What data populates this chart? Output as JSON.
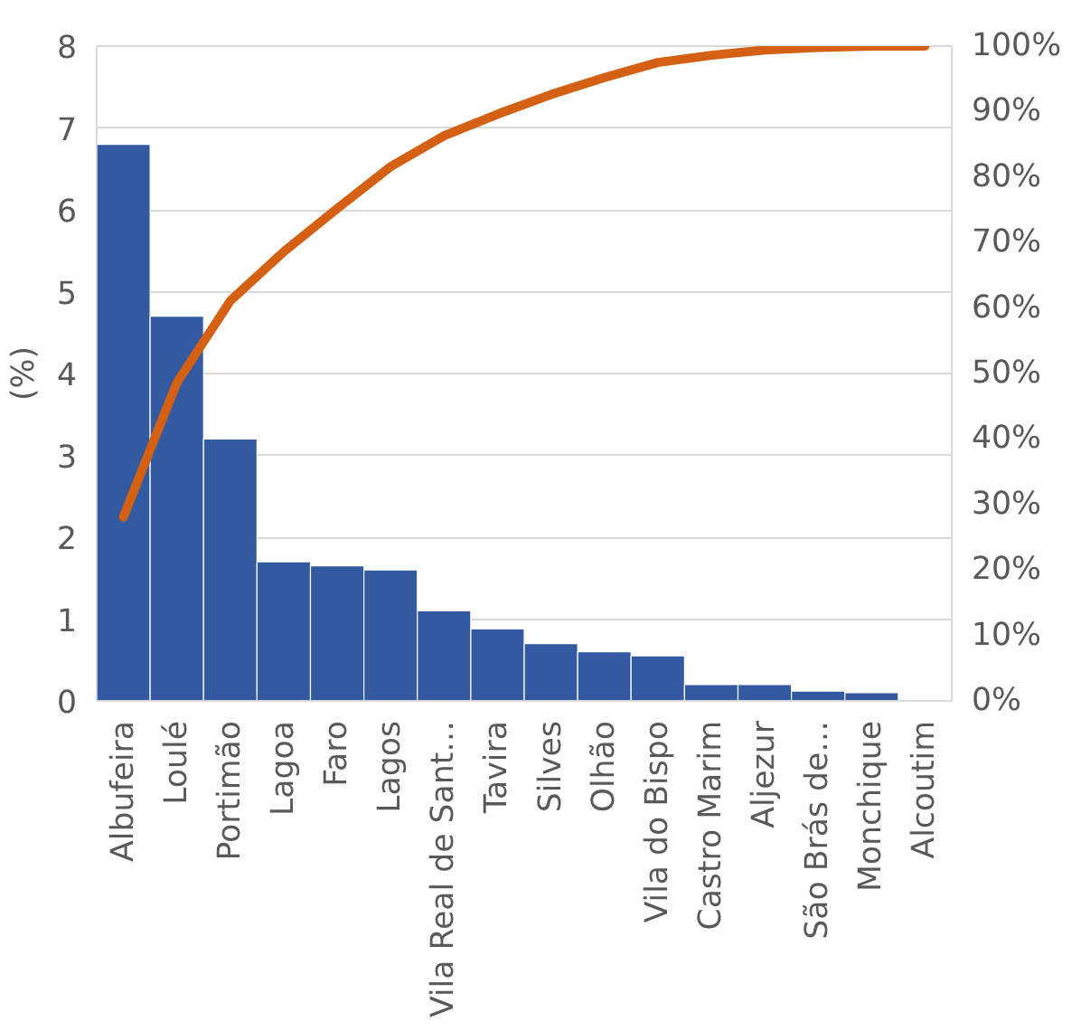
{
  "chart_data": {
    "type": "bar",
    "ylabel": "(%)",
    "categories": [
      "Albufeira",
      "Loulé",
      "Portimão",
      "Lagoa",
      "Faro",
      "Lagos",
      "Vila Real de Sant…",
      "Tavira",
      "Silves",
      "Olhão",
      "Vila do Bispo",
      "Castro Marim",
      "Aljezur",
      "São Brás de…",
      "Monchique",
      "Alcoutim"
    ],
    "series": [
      {
        "color": "#335aa1",
        "values": [
          6.8,
          4.7,
          3.2,
          1.7,
          1.65,
          1.6,
          1.1,
          0.88,
          0.7,
          0.6,
          0.55,
          0.2,
          0.2,
          0.12,
          0.1,
          0
        ]
      },
      {
        "type": "line",
        "axis": "y2",
        "color": "#d46113",
        "values": [
          28.1,
          48.6,
          61.1,
          68.6,
          75.2,
          81.6,
          86.3,
          89.6,
          92.6,
          95.2,
          97.5,
          98.6,
          99.4,
          99.8,
          100,
          100
        ]
      }
    ],
    "ylim": [
      0,
      8
    ],
    "yticks": [
      0,
      1,
      2,
      3,
      4,
      5,
      6,
      7,
      8
    ],
    "y2lim": [
      0,
      100
    ],
    "y2ticks": [
      {
        "value": 0,
        "label": "0%"
      },
      {
        "value": 10,
        "label": "10%"
      },
      {
        "value": 20,
        "label": "20%"
      },
      {
        "value": 30,
        "label": "30%"
      },
      {
        "value": 40,
        "label": "40%"
      },
      {
        "value": 50,
        "label": "50%"
      },
      {
        "value": 60,
        "label": "60%"
      },
      {
        "value": 70,
        "label": "70%"
      },
      {
        "value": 80,
        "label": "80%"
      },
      {
        "value": 90,
        "label": "90%"
      },
      {
        "value": 100,
        "label": "100%"
      }
    ],
    "grid": "y"
  }
}
